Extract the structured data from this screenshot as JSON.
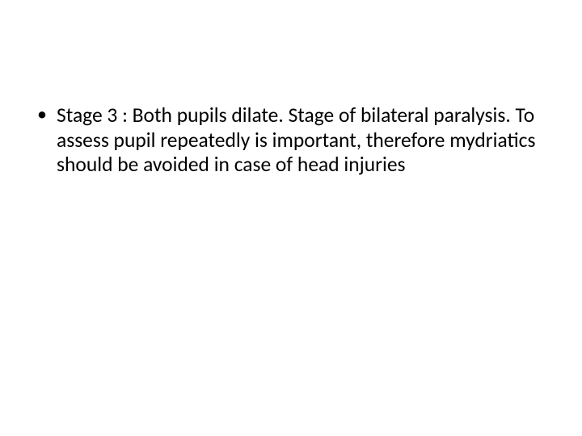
{
  "slide": {
    "background_color": "#ffffff",
    "text_color": "#000000",
    "font_family": "Calibri",
    "bullets": [
      {
        "text": "Stage 3 : Both pupils dilate. Stage of bilateral paralysis. To assess pupil repeatedly is important, therefore mydriatics should be avoided in case of head injuries",
        "font_size": 25.5,
        "line_height": 1.2
      }
    ]
  }
}
